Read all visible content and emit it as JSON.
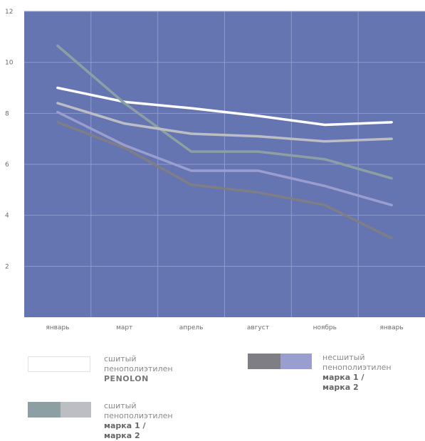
{
  "chart_data": {
    "type": "line",
    "categories": [
      "январь",
      "март",
      "апрель",
      "август",
      "ноябрь",
      "январь"
    ],
    "yticks": [
      2,
      4,
      6,
      8,
      10,
      12
    ],
    "ylim": [
      0,
      12
    ],
    "grid": true,
    "colors": {
      "plot_bg": "#6575b1",
      "grid": "#8e9acb"
    },
    "series": [
      {
        "key": "penolon",
        "color": "#ffffff",
        "width": 3.5,
        "values": [
          9.0,
          8.45,
          8.2,
          7.9,
          7.55,
          7.65
        ]
      },
      {
        "key": "sewn_m1",
        "color": "#8ca0a3",
        "width": 3.5,
        "values": [
          10.65,
          8.4,
          6.5,
          6.5,
          6.2,
          5.45
        ]
      },
      {
        "key": "sewn_m2",
        "color": "#bdbdc4",
        "width": 3.5,
        "values": [
          8.4,
          7.6,
          7.2,
          7.1,
          6.9,
          7.0
        ]
      },
      {
        "key": "unsewn_m1",
        "color": "#7e7e84",
        "width": 3.5,
        "values": [
          7.65,
          6.65,
          5.2,
          4.9,
          4.4,
          3.1
        ]
      },
      {
        "key": "unsewn_m2",
        "color": "#9a9ecf",
        "width": 3.5,
        "values": [
          8.05,
          6.75,
          5.75,
          5.75,
          5.15,
          4.4
        ]
      }
    ]
  },
  "legend": [
    {
      "line1": "сшитый",
      "line2": "пенополиэтилен",
      "line3": "PENOLON",
      "swatch_colors": [
        "#ffffff"
      ]
    },
    {
      "line1": "несшитый",
      "line2": "пенополиэтилен",
      "line3": "марка 1 / марка 2",
      "swatch_colors": [
        "#7e7e84",
        "#9a9ecf"
      ]
    },
    {
      "line1": "сшитый",
      "line2": "пенополиэтилен",
      "line3": "марка 1 / марка 2",
      "swatch_colors": [
        "#8ca0a3",
        "#bdbdc4"
      ]
    }
  ]
}
